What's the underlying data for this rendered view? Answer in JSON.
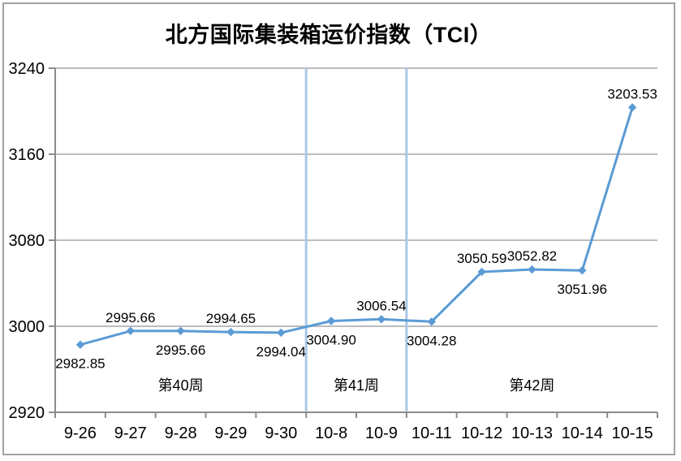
{
  "title": "北方国际集装箱运价指数（TCI）",
  "chart_data": {
    "type": "line",
    "categories": [
      "9-26",
      "9-27",
      "9-28",
      "9-29",
      "9-30",
      "10-8",
      "10-9",
      "10-11",
      "10-12",
      "10-13",
      "10-14",
      "10-15"
    ],
    "series": [
      {
        "name": "TCI",
        "values": [
          2982.85,
          2995.66,
          2995.66,
          2994.65,
          2994.04,
          3004.9,
          3006.54,
          3004.28,
          3050.59,
          3052.82,
          3051.96,
          3203.53
        ]
      }
    ],
    "data_labels": [
      "2982.85",
      "2995.66",
      "2995.66",
      "2994.65",
      "2994.04",
      "3004.90",
      "3006.54",
      "3004.28",
      "3050.59",
      "3052.82",
      "3051.96",
      "3203.53"
    ],
    "label_positions": [
      "below",
      "above",
      "below",
      "above",
      "below",
      "below",
      "above",
      "below",
      "above",
      "above",
      "below",
      "above"
    ],
    "ylim": [
      2920,
      3240
    ],
    "yticks": [
      2920,
      3000,
      3080,
      3160,
      3240
    ],
    "grid": "horizontal",
    "legend": "none",
    "week_annotations": [
      {
        "label": "第40周",
        "from_index": 0,
        "to_index": 4
      },
      {
        "label": "第41周",
        "from_index": 5,
        "to_index": 6
      },
      {
        "label": "第42周",
        "from_index": 7,
        "to_index": 11
      }
    ],
    "dividers_after_index": [
      4,
      6
    ],
    "colors": {
      "line": "#5B9BD5",
      "marker": "#5B9BD5",
      "divider": "#A9C8E8",
      "grid": "#A6A6A6",
      "axis": "#8C8C8C",
      "text": "#000000",
      "border": "#A3A3A3"
    }
  }
}
